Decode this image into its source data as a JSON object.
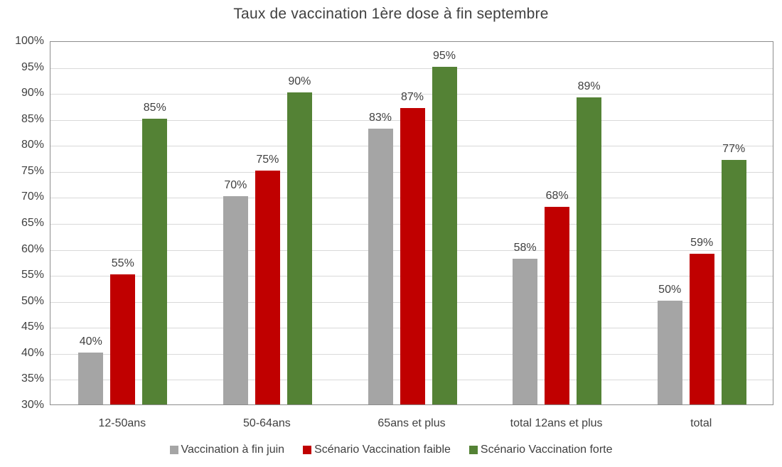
{
  "chart_data": {
    "type": "bar",
    "title": "Taux de vaccination 1ère dose à fin septembre",
    "xlabel": "",
    "ylabel": "",
    "ylim": [
      30,
      100
    ],
    "y_ticks": [
      "100%",
      "95%",
      "90%",
      "85%",
      "80%",
      "75%",
      "70%",
      "65%",
      "60%",
      "55%",
      "50%",
      "45%",
      "40%",
      "35%",
      "30%"
    ],
    "grid": true,
    "legend_position": "bottom",
    "categories": [
      "12-50ans",
      "50-64ans",
      "65ans et plus",
      "total 12ans et plus",
      "total"
    ],
    "series": [
      {
        "name": "Vaccination à fin juin",
        "color": "#a5a5a5",
        "values": [
          40,
          70,
          83,
          58,
          50
        ],
        "labels": [
          "40%",
          "70%",
          "83%",
          "58%",
          "50%"
        ]
      },
      {
        "name": "Scénario Vaccination faible",
        "color": "#c00000",
        "values": [
          55,
          75,
          87,
          68,
          59
        ],
        "labels": [
          "55%",
          "75%",
          "87%",
          "68%",
          "59%"
        ]
      },
      {
        "name": "Scénario Vaccination forte",
        "color": "#548235",
        "values": [
          85,
          90,
          95,
          89,
          77
        ],
        "labels": [
          "85%",
          "90%",
          "95%",
          "89%",
          "77%"
        ]
      }
    ]
  }
}
